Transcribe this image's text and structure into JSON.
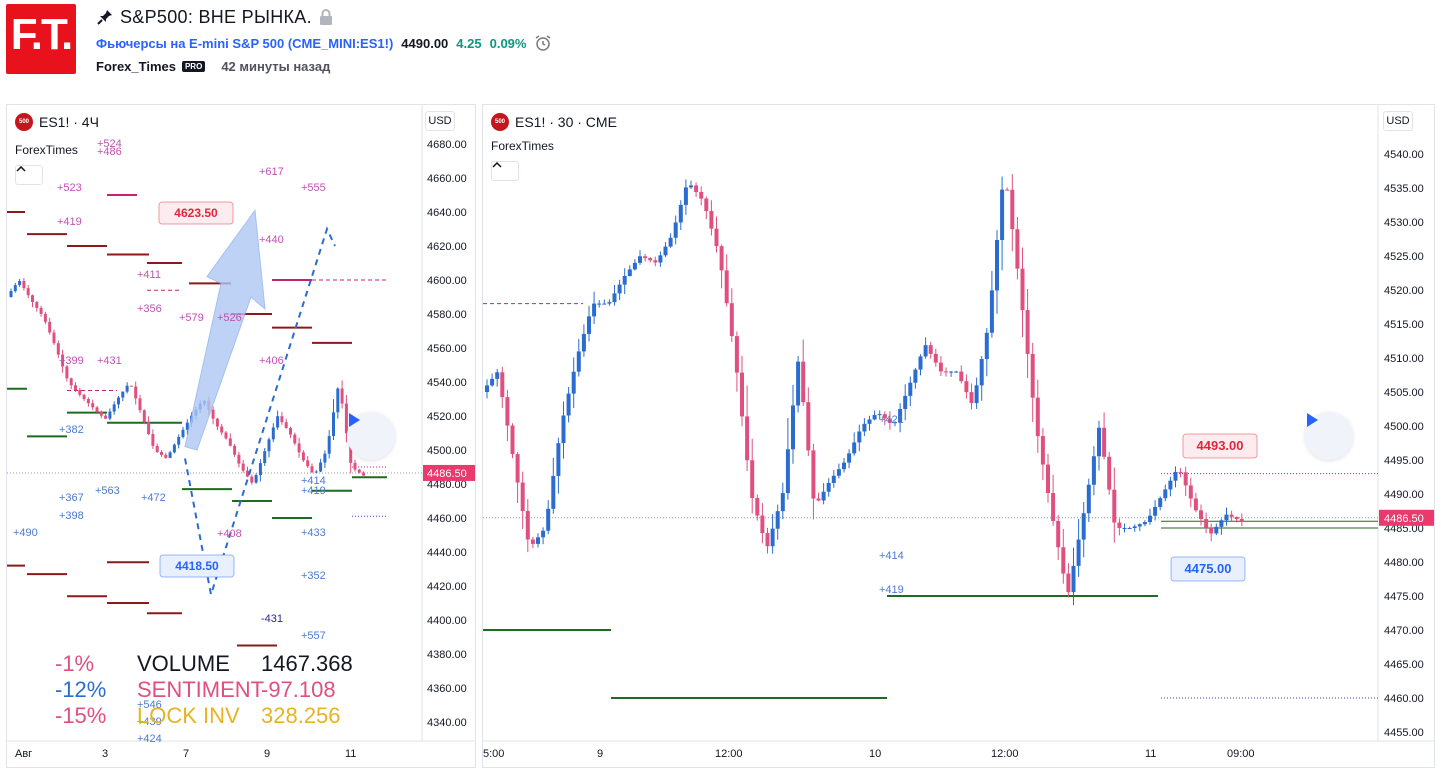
{
  "header": {
    "logo_text": "F.T.",
    "title": "S&P500: ВНЕ РЫНКА.",
    "symbol_name": "Фьючерсы на E-mini S&P 500",
    "symbol_code_open": "(",
    "symbol_code": "CME_MINI:ES1!",
    "symbol_code_close": ")",
    "price": "4490.00",
    "change": "4.25",
    "change_pct": "0.09%",
    "author": "Forex_Times",
    "pro_badge": "PRO",
    "time_ago": "42 минуты назад",
    "icons": [
      "pin-icon",
      "lock-icon",
      "alarm-clock-icon"
    ]
  },
  "colors": {
    "up": "#2a6ccf",
    "down": "#e0507e",
    "pink": "#c052b3",
    "blue_text": "#4c7ad2",
    "dark_red": "#8b1a1a",
    "green": "#1e6b22",
    "price_tag": "#e83a6d"
  },
  "left_chart": {
    "legend": "ES1! · 4Ч",
    "author": "ForexTimes",
    "currency": "USD",
    "price_labels": [
      "4680.00",
      "4660.00",
      "4640.00",
      "4620.00",
      "4600.00",
      "4580.00",
      "4560.00",
      "4540.00",
      "4520.00",
      "4500.00",
      "4480.00",
      "4460.00",
      "4440.00",
      "4420.00",
      "4400.00",
      "4380.00",
      "4360.00",
      "4340.00"
    ],
    "last_price": "4486.50",
    "time_labels": [
      "Авг",
      "3",
      "7",
      "9",
      "11"
    ],
    "callout_high": "4623.50",
    "callout_low": "4418.50",
    "annotations": [
      {
        "text": "+524",
        "color": "pink"
      },
      {
        "text": "+486",
        "color": "pink"
      },
      {
        "text": "+523",
        "color": "pink"
      },
      {
        "text": "+419",
        "color": "pink"
      },
      {
        "text": "+617",
        "color": "pink"
      },
      {
        "text": "+555",
        "color": "pink"
      },
      {
        "text": "+440",
        "color": "pink"
      },
      {
        "text": "+411",
        "color": "pink"
      },
      {
        "text": "+356",
        "color": "pink"
      },
      {
        "text": "+579",
        "color": "pink"
      },
      {
        "text": "+526",
        "color": "pink"
      },
      {
        "text": "+399",
        "color": "pink"
      },
      {
        "text": "+431",
        "color": "pink"
      },
      {
        "text": "+406",
        "color": "pink"
      },
      {
        "text": "+408",
        "color": "pink"
      },
      {
        "text": "+382",
        "color": "blue"
      },
      {
        "text": "+367",
        "color": "blue"
      },
      {
        "text": "+563",
        "color": "blue"
      },
      {
        "text": "+472",
        "color": "blue"
      },
      {
        "text": "+398",
        "color": "blue"
      },
      {
        "text": "+490",
        "color": "blue"
      },
      {
        "text": "+414",
        "color": "blue"
      },
      {
        "text": "+419",
        "color": "blue"
      },
      {
        "text": "+433",
        "color": "blue"
      },
      {
        "text": "+352",
        "color": "blue"
      },
      {
        "text": "-431",
        "color": "navy"
      },
      {
        "text": "+557",
        "color": "blue"
      },
      {
        "text": "+546",
        "color": "blue"
      },
      {
        "text": "+439",
        "color": "blue"
      },
      {
        "text": "+424",
        "color": "blue"
      }
    ],
    "stats": [
      {
        "pct": "-1%",
        "name": "VOLUME",
        "value": "1467.368"
      },
      {
        "pct": "-12%",
        "name": "SENTIMENT",
        "value": "-97.108"
      },
      {
        "pct": "-15%",
        "name": "LOCK INV",
        "value": "328.256"
      }
    ],
    "stats_colors": [
      "#e0507e",
      "#2a6ccf",
      "#e0507e"
    ],
    "stats_name_colors": [
      "#131722",
      "#e0507e",
      "#e6b422"
    ],
    "stats_value_colors": [
      "#131722",
      "#e0507e",
      "#e6b422"
    ]
  },
  "right_chart": {
    "legend": "ES1! · 30 · CME",
    "author": "ForexTimes",
    "currency": "USD",
    "price_labels": [
      "4540.00",
      "4535.00",
      "4530.00",
      "4525.00",
      "4520.00",
      "4515.00",
      "4510.00",
      "4505.00",
      "4500.00",
      "4495.00",
      "4490.00",
      "4485.00",
      "4480.00",
      "4475.00",
      "4470.00",
      "4465.00",
      "4460.00",
      "4455.00"
    ],
    "last_price": "4486.50",
    "time_labels": [
      "5:00",
      "9",
      "12:00",
      "10",
      "12:00",
      "11",
      "09:00"
    ],
    "callout_high": "4493.00",
    "callout_low": "4475.00",
    "annotations": [
      {
        "text": "+421",
        "color": "blue"
      },
      {
        "text": "+414",
        "color": "blue"
      },
      {
        "text": "+419",
        "color": "blue"
      }
    ]
  }
}
